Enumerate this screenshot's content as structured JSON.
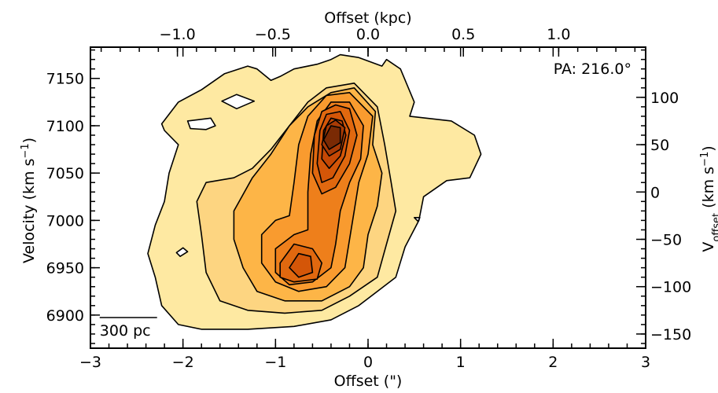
{
  "chart_data": {
    "type": "contour",
    "annotation": "PA: 216.0°",
    "scale_bar_label": "300 pc",
    "scale_bar_arcsec": [
      -2.9,
      -2.28
    ],
    "axes": {
      "bottom": {
        "label": "Offset (\")",
        "range": [
          -3,
          3
        ],
        "ticks": [
          -3,
          -2,
          -1,
          0,
          1,
          2,
          3
        ],
        "tick_labels": [
          "−3",
          "−2",
          "−1",
          "0",
          "1",
          "2",
          "3"
        ]
      },
      "left": {
        "label": "Velocity (km s⁻¹)",
        "range": [
          6865,
          7183
        ],
        "ticks": [
          6900,
          6950,
          7000,
          7050,
          7100,
          7150
        ],
        "tick_labels": [
          "6900",
          "6950",
          "7000",
          "7050",
          "7100",
          "7150"
        ]
      },
      "top": {
        "label": "Offset (kpc)",
        "ticks": [
          -1.0,
          -0.5,
          0.0,
          0.5,
          1.0
        ],
        "tick_labels": [
          "−1.0",
          "−0.5",
          "0.0",
          "0.5",
          "1.0"
        ],
        "arcsec_per_kpc": 2.06
      },
      "right": {
        "label": "V",
        "label_sub": "offset",
        "label_unit": "(km s⁻¹)",
        "ticks": [
          -150,
          -100,
          -50,
          0,
          50,
          100
        ],
        "tick_labels": [
          "−150",
          "−100",
          "−50",
          "0",
          "50",
          "100"
        ],
        "velocity_zero": 7030
      }
    },
    "fill_colors": [
      "#fee9a2",
      "#fdd581",
      "#fdb547",
      "#f99b2f",
      "#ee7f1b",
      "#e0680f",
      "#d45608",
      "#c54805",
      "#a93b05",
      "#7a2a04"
    ],
    "contours": [
      {
        "level": 1,
        "points": [
          [
            -2.23,
            7102
          ],
          [
            -2.05,
            7125
          ],
          [
            -1.8,
            7138
          ],
          [
            -1.55,
            7155
          ],
          [
            -1.3,
            7163
          ],
          [
            -1.2,
            7160
          ],
          [
            -1.05,
            7148
          ],
          [
            -0.95,
            7152
          ],
          [
            -0.8,
            7160
          ],
          [
            -0.55,
            7165
          ],
          [
            -0.4,
            7170
          ],
          [
            -0.3,
            7175
          ],
          [
            -0.1,
            7172
          ],
          [
            0.15,
            7163
          ],
          [
            0.2,
            7170
          ],
          [
            0.35,
            7160
          ],
          [
            0.5,
            7125
          ],
          [
            0.45,
            7110
          ],
          [
            0.9,
            7105
          ],
          [
            1.15,
            7090
          ],
          [
            1.22,
            7070
          ],
          [
            1.1,
            7045
          ],
          [
            0.85,
            7042
          ],
          [
            0.6,
            7025
          ],
          [
            0.55,
            7000
          ],
          [
            0.4,
            6972
          ],
          [
            0.3,
            6940
          ],
          [
            0.1,
            6925
          ],
          [
            -0.1,
            6910
          ],
          [
            -0.4,
            6895
          ],
          [
            -0.8,
            6888
          ],
          [
            -1.3,
            6885
          ],
          [
            -1.8,
            6885
          ],
          [
            -2.05,
            6890
          ],
          [
            -2.23,
            6910
          ],
          [
            -2.3,
            6940
          ],
          [
            -2.38,
            6965
          ],
          [
            -2.3,
            6995
          ],
          [
            -2.2,
            7020
          ],
          [
            -2.15,
            7050
          ],
          [
            -2.05,
            7080
          ],
          [
            -2.2,
            7095
          ]
        ]
      },
      {
        "level": 2,
        "points": [
          [
            -1.85,
            7020
          ],
          [
            -1.75,
            7040
          ],
          [
            -1.45,
            7045
          ],
          [
            -1.25,
            7055
          ],
          [
            -1.05,
            7075
          ],
          [
            -0.85,
            7100
          ],
          [
            -0.65,
            7125
          ],
          [
            -0.45,
            7140
          ],
          [
            -0.15,
            7145
          ],
          [
            0.1,
            7120
          ],
          [
            0.18,
            7080
          ],
          [
            0.25,
            7040
          ],
          [
            0.3,
            7010
          ],
          [
            0.2,
            6975
          ],
          [
            0.1,
            6940
          ],
          [
            -0.2,
            6920
          ],
          [
            -0.5,
            6905
          ],
          [
            -0.9,
            6902
          ],
          [
            -1.3,
            6905
          ],
          [
            -1.6,
            6915
          ],
          [
            -1.75,
            6945
          ],
          [
            -1.8,
            6985
          ]
        ]
      },
      {
        "level": 3,
        "points": [
          [
            -1.45,
            7010
          ],
          [
            -1.25,
            7045
          ],
          [
            -1.05,
            7070
          ],
          [
            -0.85,
            7100
          ],
          [
            -0.65,
            7120
          ],
          [
            -0.4,
            7135
          ],
          [
            -0.15,
            7140
          ],
          [
            0.08,
            7115
          ],
          [
            0.05,
            7080
          ],
          [
            0.15,
            7050
          ],
          [
            0.1,
            7015
          ],
          [
            0.0,
            6985
          ],
          [
            -0.05,
            6950
          ],
          [
            -0.2,
            6930
          ],
          [
            -0.5,
            6915
          ],
          [
            -0.9,
            6915
          ],
          [
            -1.2,
            6925
          ],
          [
            -1.35,
            6950
          ],
          [
            -1.45,
            6980
          ]
        ]
      },
      {
        "level": 4,
        "points": [
          [
            -1.15,
            6985
          ],
          [
            -1.0,
            7000
          ],
          [
            -0.85,
            7005
          ],
          [
            -0.8,
            7040
          ],
          [
            -0.75,
            7080
          ],
          [
            -0.65,
            7110
          ],
          [
            -0.45,
            7132
          ],
          [
            -0.2,
            7135
          ],
          [
            0.05,
            7110
          ],
          [
            0.0,
            7070
          ],
          [
            -0.1,
            7040
          ],
          [
            -0.15,
            7010
          ],
          [
            -0.2,
            6980
          ],
          [
            -0.25,
            6950
          ],
          [
            -0.45,
            6930
          ],
          [
            -0.75,
            6925
          ],
          [
            -1.0,
            6935
          ],
          [
            -1.15,
            6955
          ]
        ]
      },
      {
        "level": 5,
        "points": [
          [
            -1.0,
            6970
          ],
          [
            -0.8,
            6985
          ],
          [
            -0.65,
            6990
          ],
          [
            -0.65,
            7030
          ],
          [
            -0.62,
            7070
          ],
          [
            -0.55,
            7105
          ],
          [
            -0.4,
            7125
          ],
          [
            -0.2,
            7125
          ],
          [
            -0.05,
            7100
          ],
          [
            -0.08,
            7065
          ],
          [
            -0.2,
            7040
          ],
          [
            -0.3,
            7010
          ],
          [
            -0.35,
            6975
          ],
          [
            -0.4,
            6950
          ],
          [
            -0.6,
            6935
          ],
          [
            -0.85,
            6932
          ],
          [
            -1.0,
            6945
          ]
        ]
      },
      {
        "level": 6,
        "points": [
          [
            -0.95,
            6955
          ],
          [
            -0.8,
            6975
          ],
          [
            -0.6,
            6970
          ],
          [
            -0.5,
            6955
          ],
          [
            -0.55,
            6938
          ],
          [
            -0.8,
            6935
          ],
          [
            -0.95,
            6940
          ]
        ]
      },
      {
        "level": 6,
        "points": [
          [
            -0.6,
            7050
          ],
          [
            -0.58,
            7090
          ],
          [
            -0.5,
            7115
          ],
          [
            -0.35,
            7122
          ],
          [
            -0.2,
            7118
          ],
          [
            -0.12,
            7090
          ],
          [
            -0.2,
            7060
          ],
          [
            -0.35,
            7035
          ],
          [
            -0.5,
            7028
          ]
        ]
      },
      {
        "level": 7,
        "points": [
          [
            -0.85,
            6950
          ],
          [
            -0.75,
            6965
          ],
          [
            -0.62,
            6962
          ],
          [
            -0.6,
            6945
          ],
          [
            -0.75,
            6940
          ]
        ]
      },
      {
        "level": 7,
        "points": [
          [
            -0.55,
            7060
          ],
          [
            -0.52,
            7095
          ],
          [
            -0.45,
            7112
          ],
          [
            -0.3,
            7115
          ],
          [
            -0.2,
            7095
          ],
          [
            -0.25,
            7068
          ],
          [
            -0.38,
            7045
          ],
          [
            -0.5,
            7040
          ]
        ]
      },
      {
        "level": 8,
        "points": [
          [
            -0.5,
            7065
          ],
          [
            -0.48,
            7095
          ],
          [
            -0.4,
            7108
          ],
          [
            -0.28,
            7105
          ],
          [
            -0.24,
            7090
          ],
          [
            -0.3,
            7068
          ],
          [
            -0.42,
            7055
          ]
        ]
      },
      {
        "level": 9,
        "points": [
          [
            -0.5,
            7080
          ],
          [
            -0.45,
            7100
          ],
          [
            -0.35,
            7106
          ],
          [
            -0.25,
            7098
          ],
          [
            -0.3,
            7075
          ],
          [
            -0.42,
            7068
          ]
        ]
      },
      {
        "level": 10,
        "points": [
          [
            -0.48,
            7085
          ],
          [
            -0.4,
            7100
          ],
          [
            -0.3,
            7098
          ],
          [
            -0.3,
            7082
          ],
          [
            -0.42,
            7075
          ]
        ]
      },
      {
        "level": 0,
        "points": [
          [
            -1.58,
            7126
          ],
          [
            -1.42,
            7118
          ],
          [
            -1.23,
            7126
          ],
          [
            -1.42,
            7133
          ]
        ]
      },
      {
        "level": 0,
        "points": [
          [
            -1.95,
            7105
          ],
          [
            -1.7,
            7108
          ],
          [
            -1.65,
            7100
          ],
          [
            -1.75,
            7096
          ],
          [
            -1.92,
            7097
          ]
        ]
      },
      {
        "level": 0,
        "points": [
          [
            -2.03,
            6962
          ],
          [
            -1.95,
            6967
          ],
          [
            -2.0,
            6971
          ],
          [
            -2.07,
            6966
          ]
        ]
      },
      {
        "level": 0,
        "points": [
          [
            0.5,
            7003
          ],
          [
            0.56,
            7003
          ],
          [
            0.54,
            6999
          ]
        ]
      }
    ]
  }
}
